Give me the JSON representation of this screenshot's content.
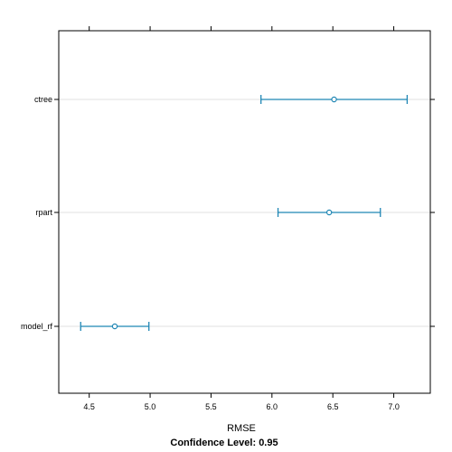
{
  "chart_data": {
    "type": "scatter",
    "xlabel": "RMSE",
    "subtitle": "Confidence Level: 0.95",
    "xlim": [
      4.25,
      7.3
    ],
    "x_ticks": [
      "4.5",
      "5.0",
      "5.5",
      "6.0",
      "6.5",
      "7.0"
    ],
    "grid": "horizontal",
    "categories": [
      "ctree",
      "rpart",
      "model_rf"
    ],
    "points": [
      {
        "label": "ctree",
        "estimate": 6.51,
        "lower": 5.91,
        "upper": 7.11
      },
      {
        "label": "rpart",
        "estimate": 6.47,
        "lower": 6.05,
        "upper": 6.89
      },
      {
        "label": "model_rf",
        "estimate": 4.71,
        "lower": 4.43,
        "upper": 4.99
      }
    ],
    "colors": {
      "series": "#1f86b4",
      "grid": "#e2e2e2",
      "frame": "#000000"
    }
  }
}
